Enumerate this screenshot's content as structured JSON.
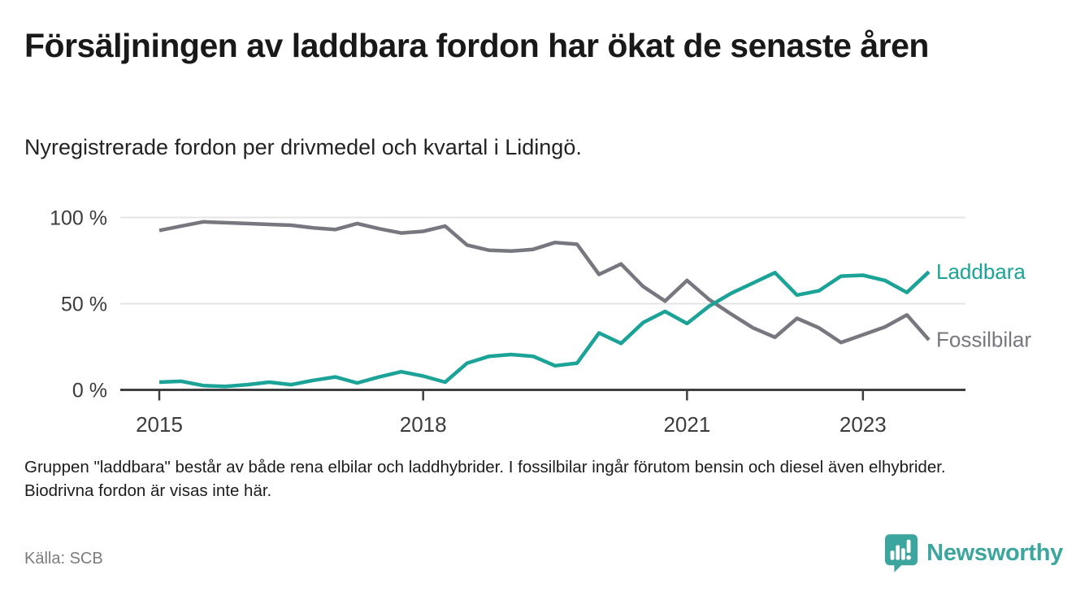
{
  "header": {
    "title": "Försäljningen av laddbara fordon har ökat de senaste åren",
    "subtitle": "Nyregistrerade fordon per drivmedel och kvartal i Lidingö."
  },
  "chart_data": {
    "type": "line",
    "unit": "%",
    "ylim": [
      0,
      100
    ],
    "grid": true,
    "legend_position": "end-of-line",
    "x": [
      "2015Q1",
      "2015Q2",
      "2015Q3",
      "2015Q4",
      "2016Q1",
      "2016Q2",
      "2016Q3",
      "2016Q4",
      "2017Q1",
      "2017Q2",
      "2017Q3",
      "2017Q4",
      "2018Q1",
      "2018Q2",
      "2018Q3",
      "2018Q4",
      "2019Q1",
      "2019Q2",
      "2019Q3",
      "2019Q4",
      "2020Q1",
      "2020Q2",
      "2020Q3",
      "2020Q4",
      "2021Q1",
      "2021Q2",
      "2021Q3",
      "2021Q4",
      "2022Q1",
      "2022Q2",
      "2022Q3",
      "2022Q4",
      "2023Q1",
      "2023Q2",
      "2023Q3",
      "2023Q4"
    ],
    "series": [
      {
        "name": "Laddbara",
        "color": "#1aa396",
        "values": [
          4.5,
          5,
          2.5,
          2,
          3,
          4.5,
          3,
          5.5,
          7.5,
          4,
          7.5,
          10.5,
          8,
          4.5,
          15.5,
          19.5,
          20.5,
          19.5,
          14,
          15.5,
          33,
          27,
          39,
          45.5,
          38.5,
          48.5,
          56,
          62,
          68,
          55,
          57.5,
          66,
          66.5,
          63.5,
          56.5,
          68.5
        ]
      },
      {
        "name": "Fossilbilar",
        "color": "#77777f",
        "values": [
          92.5,
          95,
          97.5,
          97,
          96.5,
          96,
          95.5,
          94,
          93,
          96.5,
          93.5,
          91,
          92,
          95,
          84,
          81,
          80.5,
          81.5,
          85.5,
          84.5,
          67,
          73,
          60,
          51.5,
          63.5,
          52.5,
          44,
          36,
          30.5,
          41.5,
          36,
          27.5,
          32,
          36.5,
          43.5,
          29
        ]
      }
    ],
    "y_ticks": [
      {
        "value": 100,
        "label": "100 %"
      },
      {
        "value": 50,
        "label": "50 %"
      },
      {
        "value": 0,
        "label": "0 %"
      }
    ],
    "x_ticks": [
      {
        "index": 0,
        "label": "2015"
      },
      {
        "index": 12,
        "label": "2018"
      },
      {
        "index": 24,
        "label": "2021"
      },
      {
        "index": 32,
        "label": "2023"
      }
    ],
    "colors": {
      "grid": "#e4e4e4",
      "axis": "#3f3f3f",
      "axis_text": "#3c3c3c"
    }
  },
  "footnote": "Gruppen \"laddbara\" består av både rena elbilar och laddhybrider. I fossilbilar ingår förutom bensin och diesel även elhybrider. Biodrivna fordon är visas inte här.",
  "source": "Källa: SCB",
  "branding": {
    "logo_text": "Newsworthy",
    "logo_color": "#3ba59e"
  }
}
